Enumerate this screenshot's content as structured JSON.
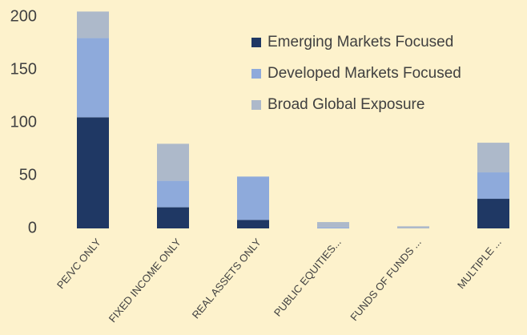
{
  "chart_data": {
    "type": "stacked_bar",
    "categories": [
      "PE/VC ONLY",
      "FIXED INCOME ONLY",
      "REAL ASSETS ONLY",
      "PUBLIC EQUITIES...",
      "FUNDS OF FUNDS ...",
      "MULTIPLE ..."
    ],
    "series": [
      {
        "name": "Emerging Markets Focused",
        "color": "#1f3864",
        "values": [
          105,
          20,
          8,
          0,
          0,
          28
        ]
      },
      {
        "name": "Developed Markets Focused",
        "color": "#8eaadb",
        "values": [
          75,
          25,
          41,
          1,
          0,
          25
        ]
      },
      {
        "name": "Broad Global Exposure",
        "color": "#adb9ca",
        "values": [
          25,
          35,
          0,
          5,
          2,
          28
        ]
      }
    ],
    "ylim": [
      0,
      200
    ],
    "yticks": [
      0,
      50,
      100,
      150,
      200
    ],
    "grid": false,
    "legend": "top-right"
  }
}
